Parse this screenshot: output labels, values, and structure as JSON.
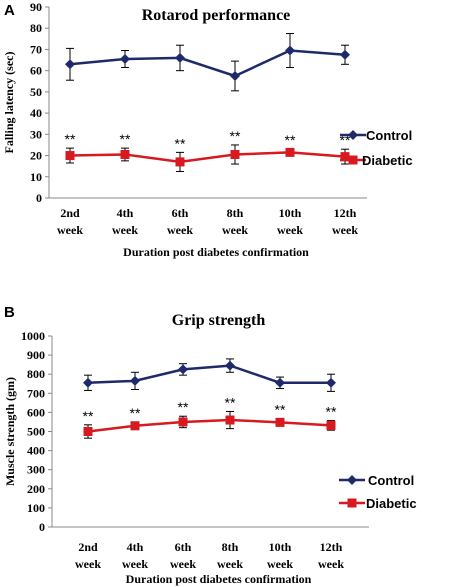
{
  "panels": [
    {
      "letter": "A",
      "chart_data": {
        "type": "line",
        "title": "Rotarod performance",
        "xlabel": "Duration post diabetes confirmation",
        "ylabel": "Falling latency (sec)",
        "ylim": [
          0,
          90
        ],
        "yticks": [
          0,
          10,
          20,
          30,
          40,
          50,
          60,
          70,
          80,
          90
        ],
        "categories": [
          "2nd week",
          "4th week",
          "6th week",
          "8th week",
          "10th week",
          "12th week"
        ],
        "legend_position": "right",
        "grid": false,
        "annotation": "**",
        "series": [
          {
            "name": "Control",
            "color": "#1f2a6b",
            "marker": "diamond",
            "values": [
              63,
              65.5,
              66,
              57.5,
              69.5,
              67.5
            ],
            "errors": [
              7.5,
              4,
              6,
              7,
              8,
              4.5
            ]
          },
          {
            "name": "Diabetic",
            "color": "#d71920",
            "marker": "square",
            "values": [
              20,
              20.5,
              17,
              20.5,
              21.5,
              19.5
            ],
            "errors": [
              3.5,
              3,
              4.5,
              4.5,
              1.5,
              3.5
            ]
          }
        ]
      }
    },
    {
      "letter": "B",
      "chart_data": {
        "type": "line",
        "title": "Grip strength",
        "xlabel": "Duration post diabetes confirmation",
        "ylabel": "Muscle strength (gm)",
        "ylim": [
          0,
          1000
        ],
        "yticks": [
          0,
          100,
          200,
          300,
          400,
          500,
          600,
          700,
          800,
          900,
          1000
        ],
        "categories": [
          "2nd week",
          "4th week",
          "6th week",
          "8th week",
          "10th week",
          "12th week"
        ],
        "legend_position": "right",
        "grid": false,
        "annotation": "**",
        "series": [
          {
            "name": "Control",
            "color": "#1f2a6b",
            "marker": "diamond",
            "values": [
              755,
              765,
              825,
              845,
              755,
              755
            ],
            "errors": [
              40,
              45,
              30,
              35,
              30,
              45
            ]
          },
          {
            "name": "Diabetic",
            "color": "#d71920",
            "marker": "square",
            "values": [
              500,
              530,
              550,
              560,
              548,
              532
            ],
            "errors": [
              35,
              20,
              30,
              45,
              20,
              25
            ]
          }
        ]
      }
    }
  ]
}
